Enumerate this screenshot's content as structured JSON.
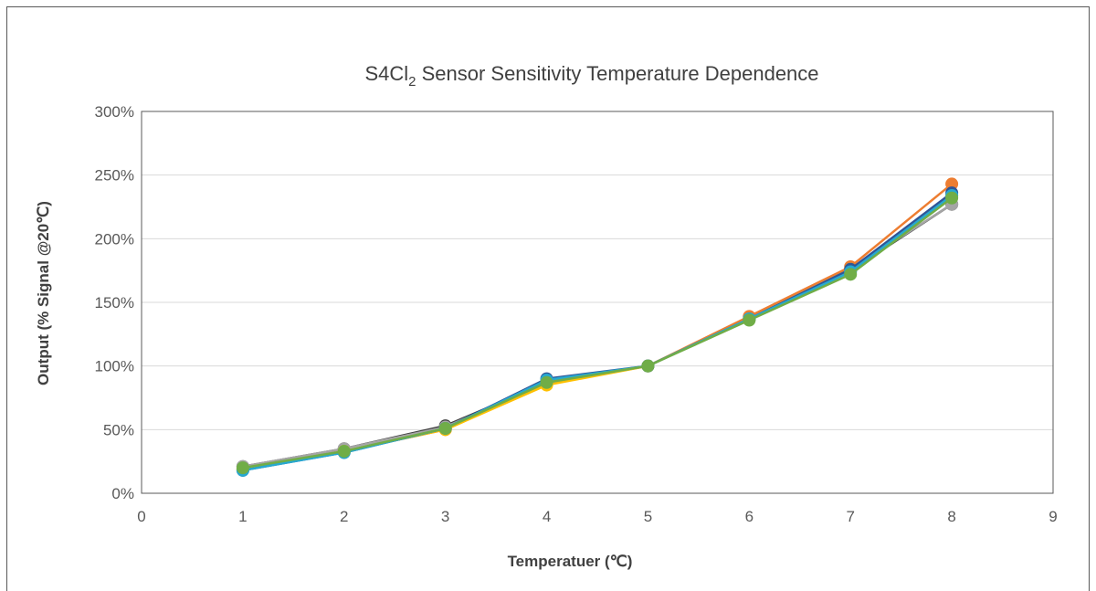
{
  "chart_data": {
    "type": "line",
    "title": {
      "main": "S4Cl",
      "subscript": "2",
      "rest": " Sensor Sensitivity Temperature Dependence"
    },
    "xlabel": "Temperatuer (℃)",
    "ylabel": "Output (% Signal @20℃)",
    "xlim": [
      0,
      9
    ],
    "ylim": [
      0,
      300
    ],
    "x_ticks": [
      0,
      1,
      2,
      3,
      4,
      5,
      6,
      7,
      8,
      9
    ],
    "y_ticks": [
      0,
      50,
      100,
      150,
      200,
      250,
      300
    ],
    "y_tick_labels": [
      "0%",
      "50%",
      "100%",
      "150%",
      "200%",
      "250%",
      "300%"
    ],
    "grid": "horizontal",
    "legend": "none",
    "x": [
      1,
      2,
      3,
      4,
      5,
      6,
      7,
      8
    ],
    "series": [
      {
        "color": "#404040",
        "values": [
          21,
          35,
          53,
          87,
          100,
          137,
          175,
          227
        ]
      },
      {
        "color": "#ED7D31",
        "values": [
          19,
          33,
          50,
          86,
          100,
          139,
          178,
          243
        ]
      },
      {
        "color": "#A5A5A5",
        "values": [
          21,
          35,
          52,
          87,
          100,
          137,
          176,
          227
        ]
      },
      {
        "color": "#FFC000",
        "values": [
          19,
          33,
          50,
          85,
          100,
          137,
          176,
          234
        ]
      },
      {
        "color": "#2F5597",
        "values": [
          18,
          32,
          51,
          90,
          100,
          137,
          176,
          236
        ]
      },
      {
        "color": "#26A9D0",
        "values": [
          18,
          32,
          51,
          89,
          100,
          137,
          174,
          234
        ]
      },
      {
        "color": "#70AD47",
        "values": [
          20,
          33,
          51,
          87,
          100,
          136,
          172,
          232
        ]
      }
    ]
  }
}
